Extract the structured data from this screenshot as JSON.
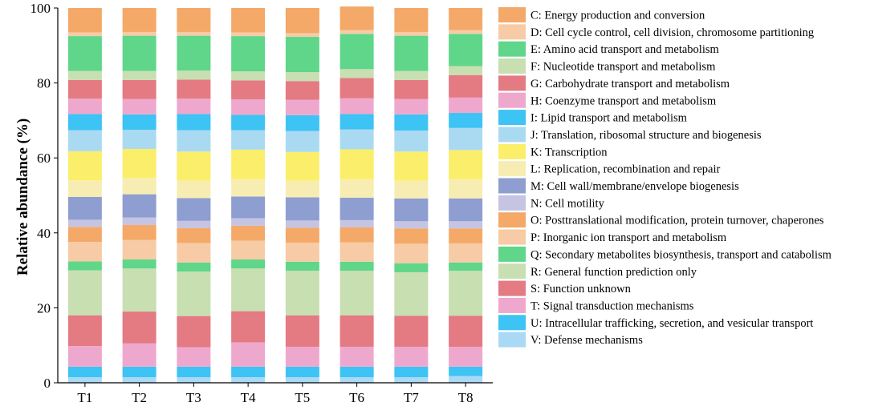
{
  "chart_data": {
    "type": "bar",
    "stacked": true,
    "title": "",
    "xlabel": "",
    "ylabel": "Relative abundance (%)",
    "ylim": [
      0,
      100
    ],
    "yticks": [
      "0",
      "20",
      "40",
      "60",
      "80",
      "100"
    ],
    "categories": [
      "T1",
      "T2",
      "T3",
      "T4",
      "T5",
      "T6",
      "T7",
      "T8"
    ],
    "legend_position": "right",
    "series": [
      {
        "name": "V: Defense mechanisms",
        "color": "#a9d9f5",
        "values": [
          1.5,
          1.5,
          1.5,
          1.5,
          1.5,
          1.5,
          1.5,
          1.8
        ]
      },
      {
        "name": "U: Intracellular trafficking, secretion, and vesicular transport",
        "color": "#3dc3f4",
        "values": [
          2.8,
          2.8,
          2.8,
          2.8,
          2.8,
          2.8,
          2.8,
          2.5
        ]
      },
      {
        "name": "T: Signal transduction mechanisms",
        "color": "#efa8cd",
        "values": [
          5.5,
          6.2,
          5.2,
          6.5,
          5.3,
          5.3,
          5.3,
          5.3
        ]
      },
      {
        "name": "S: Function unknown",
        "color": "#e47a82",
        "values": [
          8.2,
          8.5,
          8.3,
          8.3,
          8.4,
          8.4,
          8.3,
          8.3
        ]
      },
      {
        "name": "R: General function prediction only",
        "color": "#c7dfb1",
        "values": [
          12.0,
          11.5,
          11.9,
          11.4,
          11.9,
          11.9,
          11.6,
          12.0
        ]
      },
      {
        "name": "Q: Secondary metabolites biosynthesis, transport and catabolism",
        "color": "#5fd68a",
        "values": [
          2.4,
          2.4,
          2.4,
          2.4,
          2.4,
          2.4,
          2.4,
          2.2
        ]
      },
      {
        "name": "P: Inorganic ion transport and metabolism",
        "color": "#f6cba5",
        "values": [
          5.2,
          5.2,
          5.2,
          5.0,
          5.1,
          5.2,
          5.2,
          5.1
        ]
      },
      {
        "name": "O: Posttranslational modification, protein turnover, chaperones",
        "color": "#f4a969",
        "values": [
          4.0,
          4.0,
          4.0,
          4.0,
          4.0,
          4.0,
          4.1,
          4.0
        ]
      },
      {
        "name": "N: Cell motility",
        "color": "#c6c4e3",
        "values": [
          1.9,
          2.0,
          1.9,
          2.0,
          1.9,
          1.9,
          1.9,
          1.9
        ]
      },
      {
        "name": "M: Cell wall/membrane/envelope biogenesis",
        "color": "#8f9ed0",
        "values": [
          6.1,
          6.2,
          6.1,
          5.8,
          6.2,
          6.0,
          6.1,
          6.1
        ]
      },
      {
        "name": "L: Replication, recombination and repair",
        "color": "#f7edb2",
        "values": [
          4.4,
          4.4,
          4.6,
          4.6,
          4.4,
          4.9,
          4.7,
          5.1
        ]
      },
      {
        "name": "K: Transcription",
        "color": "#fbee6a",
        "values": [
          7.8,
          7.7,
          7.8,
          7.9,
          7.7,
          8.0,
          7.8,
          7.8
        ]
      },
      {
        "name": "J: Translation, ribosomal structure and biogenesis",
        "color": "#aadaf2",
        "values": [
          5.6,
          5.1,
          5.7,
          5.2,
          5.6,
          5.3,
          5.6,
          5.9
        ]
      },
      {
        "name": "I: Lipid transport and metabolism",
        "color": "#3dc3f4",
        "values": [
          4.3,
          4.1,
          4.3,
          4.1,
          4.2,
          4.1,
          4.3,
          4.0
        ]
      },
      {
        "name": "H: Coenzyme transport and metabolism",
        "color": "#efa8cd",
        "values": [
          4.1,
          4.1,
          4.1,
          4.1,
          4.1,
          4.2,
          4.1,
          4.1
        ]
      },
      {
        "name": "G: Carbohydrate transport and metabolism",
        "color": "#e47a82",
        "values": [
          5.0,
          5.1,
          5.1,
          5.1,
          5.0,
          5.4,
          5.1,
          6.0
        ]
      },
      {
        "name": "F: Nucleotide transport and metabolism",
        "color": "#c7dfb1",
        "values": [
          2.4,
          2.4,
          2.4,
          2.4,
          2.4,
          2.4,
          2.4,
          2.4
        ]
      },
      {
        "name": "E: Amino acid transport and metabolism",
        "color": "#5fd68a",
        "values": [
          9.3,
          9.4,
          9.3,
          9.4,
          9.4,
          9.4,
          9.4,
          8.6
        ]
      },
      {
        "name": "D: Cell cycle control, cell division, chromosome partitioning",
        "color": "#f6cba5",
        "values": [
          1.0,
          1.0,
          1.0,
          1.0,
          1.0,
          1.0,
          1.0,
          1.0
        ]
      },
      {
        "name": "C: Energy production and conversion",
        "color": "#f4a969",
        "values": [
          6.5,
          6.4,
          6.4,
          6.5,
          6.7,
          6.3,
          6.4,
          5.9
        ]
      }
    ]
  }
}
